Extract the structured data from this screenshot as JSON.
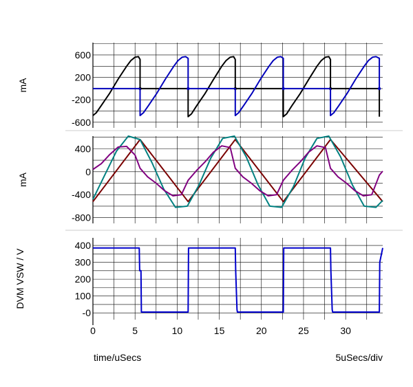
{
  "chart_data": [
    {
      "type": "line",
      "ylabel": "mA",
      "ylim": [
        -700,
        820
      ],
      "yticks": [
        600,
        200,
        -200,
        -600
      ],
      "ytick_labels": [
        "600",
        "200",
        "-200",
        "-600"
      ],
      "grid": true,
      "series": [
        {
          "color": "#000000",
          "x": [
            0,
            0.4,
            1,
            2,
            3,
            4,
            4.5,
            5,
            5.4,
            5.6,
            5.6,
            11.3,
            11.3,
            11.7,
            12.3,
            13.3,
            14.3,
            15.3,
            15.8,
            16.3,
            16.7,
            16.9,
            16.9,
            22.6,
            22.6,
            23,
            23.6,
            24.6,
            25.6,
            26.6,
            27.1,
            27.6,
            28,
            28.2,
            28.2,
            34.0,
            34.0
          ],
          "y": [
            -480,
            -430,
            -300,
            -80,
            170,
            400,
            500,
            560,
            570,
            520,
            0,
            0,
            -500,
            -450,
            -310,
            -90,
            160,
            400,
            500,
            560,
            570,
            520,
            0,
            0,
            -500,
            -450,
            -310,
            -90,
            160,
            400,
            500,
            560,
            570,
            520,
            0,
            0,
            -500
          ]
        },
        {
          "color": "#0000bb",
          "x": [
            0,
            5.6,
            5.6,
            6,
            6.6,
            7.6,
            8.6,
            9.6,
            10.1,
            10.6,
            11,
            11.3,
            11.3,
            16.9,
            16.9,
            17.3,
            17.9,
            18.9,
            19.9,
            20.9,
            21.4,
            21.9,
            22.3,
            22.6,
            22.6,
            28.2,
            28.2,
            28.6,
            29.2,
            30.2,
            31.2,
            32.2,
            32.7,
            33.2,
            33.6,
            34.0,
            34.0
          ],
          "y": [
            0,
            0,
            -480,
            -430,
            -300,
            -80,
            170,
            400,
            500,
            560,
            570,
            540,
            0,
            0,
            -480,
            -430,
            -300,
            -80,
            170,
            400,
            500,
            560,
            570,
            540,
            0,
            0,
            -480,
            -430,
            -300,
            -80,
            170,
            400,
            500,
            560,
            570,
            540,
            0
          ]
        }
      ]
    },
    {
      "type": "line",
      "ylabel": "mA",
      "ylim": [
        -900,
        620
      ],
      "yticks": [
        400,
        0,
        -400,
        -800
      ],
      "ytick_labels": [
        "400",
        "0",
        "-400",
        "-800"
      ],
      "grid": true,
      "series": [
        {
          "color": "#7a0000",
          "x": [
            0,
            5.6,
            11.3,
            16.9,
            22.6,
            28.2,
            34.4
          ],
          "y": [
            -520,
            560,
            -520,
            560,
            -520,
            560,
            -520
          ]
        },
        {
          "color": "#008080",
          "x": [
            0,
            1.4,
            2.8,
            4.2,
            5.6,
            7.0,
            8.4,
            9.8,
            11.2,
            12.6,
            14.0,
            15.4,
            16.8,
            18.2,
            19.6,
            21.0,
            22.4,
            23.8,
            25.2,
            26.6,
            28.0,
            29.4,
            30.8,
            32.2,
            33.6,
            34.4
          ],
          "y": [
            -480,
            -60,
            360,
            620,
            560,
            160,
            -300,
            -620,
            -600,
            -230,
            240,
            580,
            620,
            260,
            -230,
            -600,
            -620,
            -260,
            240,
            580,
            620,
            260,
            -230,
            -600,
            -620,
            -500
          ]
        },
        {
          "color": "#800080",
          "x": [
            0,
            1,
            2,
            3,
            4,
            5,
            5.6,
            6.5,
            7.5,
            8.5,
            9.5,
            10.5,
            11.3,
            12.3,
            13.3,
            14.3,
            15.3,
            16.3,
            16.9,
            17.8,
            18.8,
            19.8,
            20.8,
            21.8,
            22.6,
            23.6,
            24.6,
            25.6,
            26.6,
            27.6,
            28.2,
            29.1,
            30.1,
            31.1,
            32.1,
            33.1,
            34.0,
            34.4
          ],
          "y": [
            40,
            140,
            300,
            430,
            440,
            290,
            60,
            -90,
            -200,
            -330,
            -420,
            -400,
            -150,
            20,
            170,
            340,
            450,
            420,
            60,
            -90,
            -200,
            -330,
            -420,
            -400,
            -150,
            20,
            170,
            340,
            450,
            420,
            60,
            -90,
            -200,
            -330,
            -420,
            -400,
            -60,
            10
          ]
        }
      ]
    },
    {
      "type": "line",
      "ylabel": "DVM VSW / V",
      "ylim": [
        -40,
        445
      ],
      "yticks": [
        400,
        300,
        200,
        100,
        0
      ],
      "ytick_labels": [
        "400",
        "300",
        "200",
        "100",
        "-0"
      ],
      "xlabel": "time/uSecs",
      "xlim": [
        0,
        34.4
      ],
      "xticks": [
        0,
        5,
        10,
        15,
        20,
        25,
        30
      ],
      "xtick_labels": [
        "0",
        "5",
        "10",
        "15",
        "20",
        "25",
        "30"
      ],
      "x_scale_note": "5uSecs/div",
      "grid": true,
      "series": [
        {
          "color": "#0000cc",
          "x": [
            0,
            5.5,
            5.55,
            5.7,
            5.75,
            11.3,
            11.35,
            16.9,
            16.95,
            17.1,
            17.15,
            22.6,
            22.65,
            28.2,
            28.25,
            28.4,
            28.45,
            34.0,
            34.05,
            34.4
          ],
          "y": [
            385,
            385,
            250,
            250,
            5,
            5,
            385,
            385,
            250,
            20,
            5,
            5,
            385,
            385,
            250,
            20,
            5,
            5,
            300,
            385
          ]
        }
      ]
    }
  ]
}
